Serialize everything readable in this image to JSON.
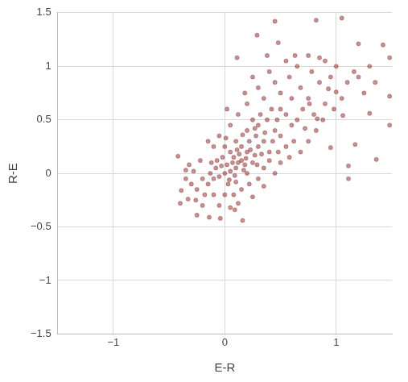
{
  "chart_data": {
    "type": "scatter",
    "x_label": "E-R",
    "y_label": "R-E",
    "color": "#7a0a0a",
    "marker": "circle",
    "grid": true,
    "xlim": [
      -1.5,
      1.5
    ],
    "ylim": [
      -1.5,
      1.5
    ],
    "xticks": [
      {
        "value": -1,
        "label": "−1"
      },
      0,
      1
    ],
    "yticks": [
      {
        "value": -1.5,
        "label": "−1.5"
      },
      {
        "value": -1,
        "label": "−1"
      },
      {
        "value": -0.5,
        "label": "−0.5"
      },
      0,
      0.5,
      1,
      1.5
    ],
    "x": [
      0,
      0.05,
      0.1,
      0.12,
      -0.05,
      0.02,
      0.08,
      0.15,
      0.2,
      0.18,
      -0.1,
      -0.08,
      -0.15,
      -0.2,
      -0.12,
      0.03,
      0.1,
      0.2,
      0.25,
      0.3,
      0.35,
      0.28,
      0.4,
      0.45,
      0.5,
      0.22,
      0.15,
      0.05,
      -0.02,
      0,
      0.1,
      0.2,
      0.3,
      0.38,
      0.55,
      0.6,
      0.5,
      0.42,
      0.32,
      0.25,
      -0.25,
      -0.28,
      -0.22,
      -0.18,
      -0.1,
      0,
      0.08,
      0.15,
      0.22,
      0.3,
      0.35,
      0.4,
      0.48,
      0.55,
      0.62,
      0.65,
      0.7,
      0.72,
      0.6,
      0.5,
      0.45,
      0.58,
      0.68,
      0.75,
      0.8,
      0.85,
      0.9,
      0.78,
      0.65,
      0.95,
      -0.3,
      -0.32,
      -0.35,
      -0.26,
      -0.2,
      -0.05,
      0.05,
      0.12,
      0.25,
      0.35,
      0.45,
      0.5,
      0.58,
      0.68,
      0.75,
      0.82,
      0.88,
      0.98,
      1.05,
      1.1,
      1.2,
      1.25,
      1.3,
      1.35,
      1,
      0.9,
      0.75,
      0.55,
      0.4,
      0.3,
      0.2,
      0.12,
      0.05,
      -0.05,
      -0.1,
      -0.15,
      0.02,
      0.18,
      0.25,
      0.35,
      0.07,
      0.13,
      -0.03,
      0.09,
      0.17,
      0.27,
      0.33,
      0.23,
      -0.07,
      0.04,
      0.11,
      0.19,
      0.29,
      -0.13,
      0.01,
      0.36,
      0.43,
      0.47,
      0.27,
      0.16,
      0.45,
      0.82,
      1.05,
      1.42,
      1.2,
      0.29,
      0.48,
      0.38,
      0.63,
      0.11,
      0.85,
      1.48,
      1.48,
      1.3,
      1.36,
      1.11,
      1.11,
      1.17,
      0.95,
      0.93,
      1.16,
      1,
      0.76,
      1.06,
      0.83,
      -0.42,
      -0.4,
      -0.33,
      -0.14,
      -0.04,
      0.16,
      -0.25,
      0.09,
      -0.39,
      -0.35,
      1.48
    ],
    "values": [
      0,
      0.02,
      0.05,
      0.1,
      -0.03,
      0.08,
      0.15,
      0.12,
      0.2,
      0.08,
      -0.05,
      0.05,
      -0.1,
      -0.05,
      0.1,
      -0.1,
      -0.08,
      0,
      0.1,
      0.25,
      0.3,
      0.35,
      0.2,
      0.4,
      0.35,
      0.3,
      0.25,
      0.2,
      0.15,
      0.25,
      0.3,
      0.4,
      0.45,
      0.5,
      0.55,
      0.45,
      0.6,
      0.6,
      0.55,
      0.5,
      -0.15,
      0.02,
      0.12,
      -0.2,
      -0.2,
      -0.2,
      -0.2,
      -0.15,
      -0.1,
      -0.05,
      0.05,
      0.12,
      0.2,
      0.25,
      0.3,
      0.5,
      0.6,
      0.42,
      0.7,
      0.75,
      0.85,
      0.9,
      0.8,
      0.7,
      0.55,
      0.85,
      0.65,
      0.95,
      1,
      0.9,
      -0.1,
      0.08,
      -0.05,
      -0.25,
      -0.3,
      -0.3,
      -0.32,
      -0.28,
      -0.22,
      -0.12,
      0,
      0.1,
      0.15,
      0.2,
      0.3,
      0.4,
      0.5,
      0.6,
      0.7,
      0.85,
      0.9,
      0.75,
      1,
      0.85,
      1,
      1.05,
      1.1,
      1.05,
      0.95,
      0.8,
      0.65,
      0.55,
      0.45,
      0.35,
      0.25,
      0.3,
      0.6,
      0.75,
      0.9,
      0.7,
      0.1,
      0.18,
      0.07,
      -0.02,
      0.03,
      0.17,
      0.18,
      0.22,
      0.12,
      -0.06,
      0.22,
      0.14,
      0.08,
      0,
      0.33,
      0.38,
      0.3,
      0.5,
      0.42,
      0.36,
      1.42,
      1.43,
      1.45,
      1.2,
      1.21,
      1.29,
      1.22,
      1.1,
      1.1,
      1.08,
      1.08,
      1.08,
      0.45,
      0.56,
      0.13,
      -0.05,
      0.07,
      0.27,
      0.24,
      0.79,
      0.95,
      0.76,
      0.65,
      0.54,
      0.51,
      0.16,
      -0.28,
      -0.24,
      -0.41,
      -0.42,
      -0.44,
      -0.39,
      -0.34,
      -0.16,
      0.03,
      0.72
    ]
  }
}
